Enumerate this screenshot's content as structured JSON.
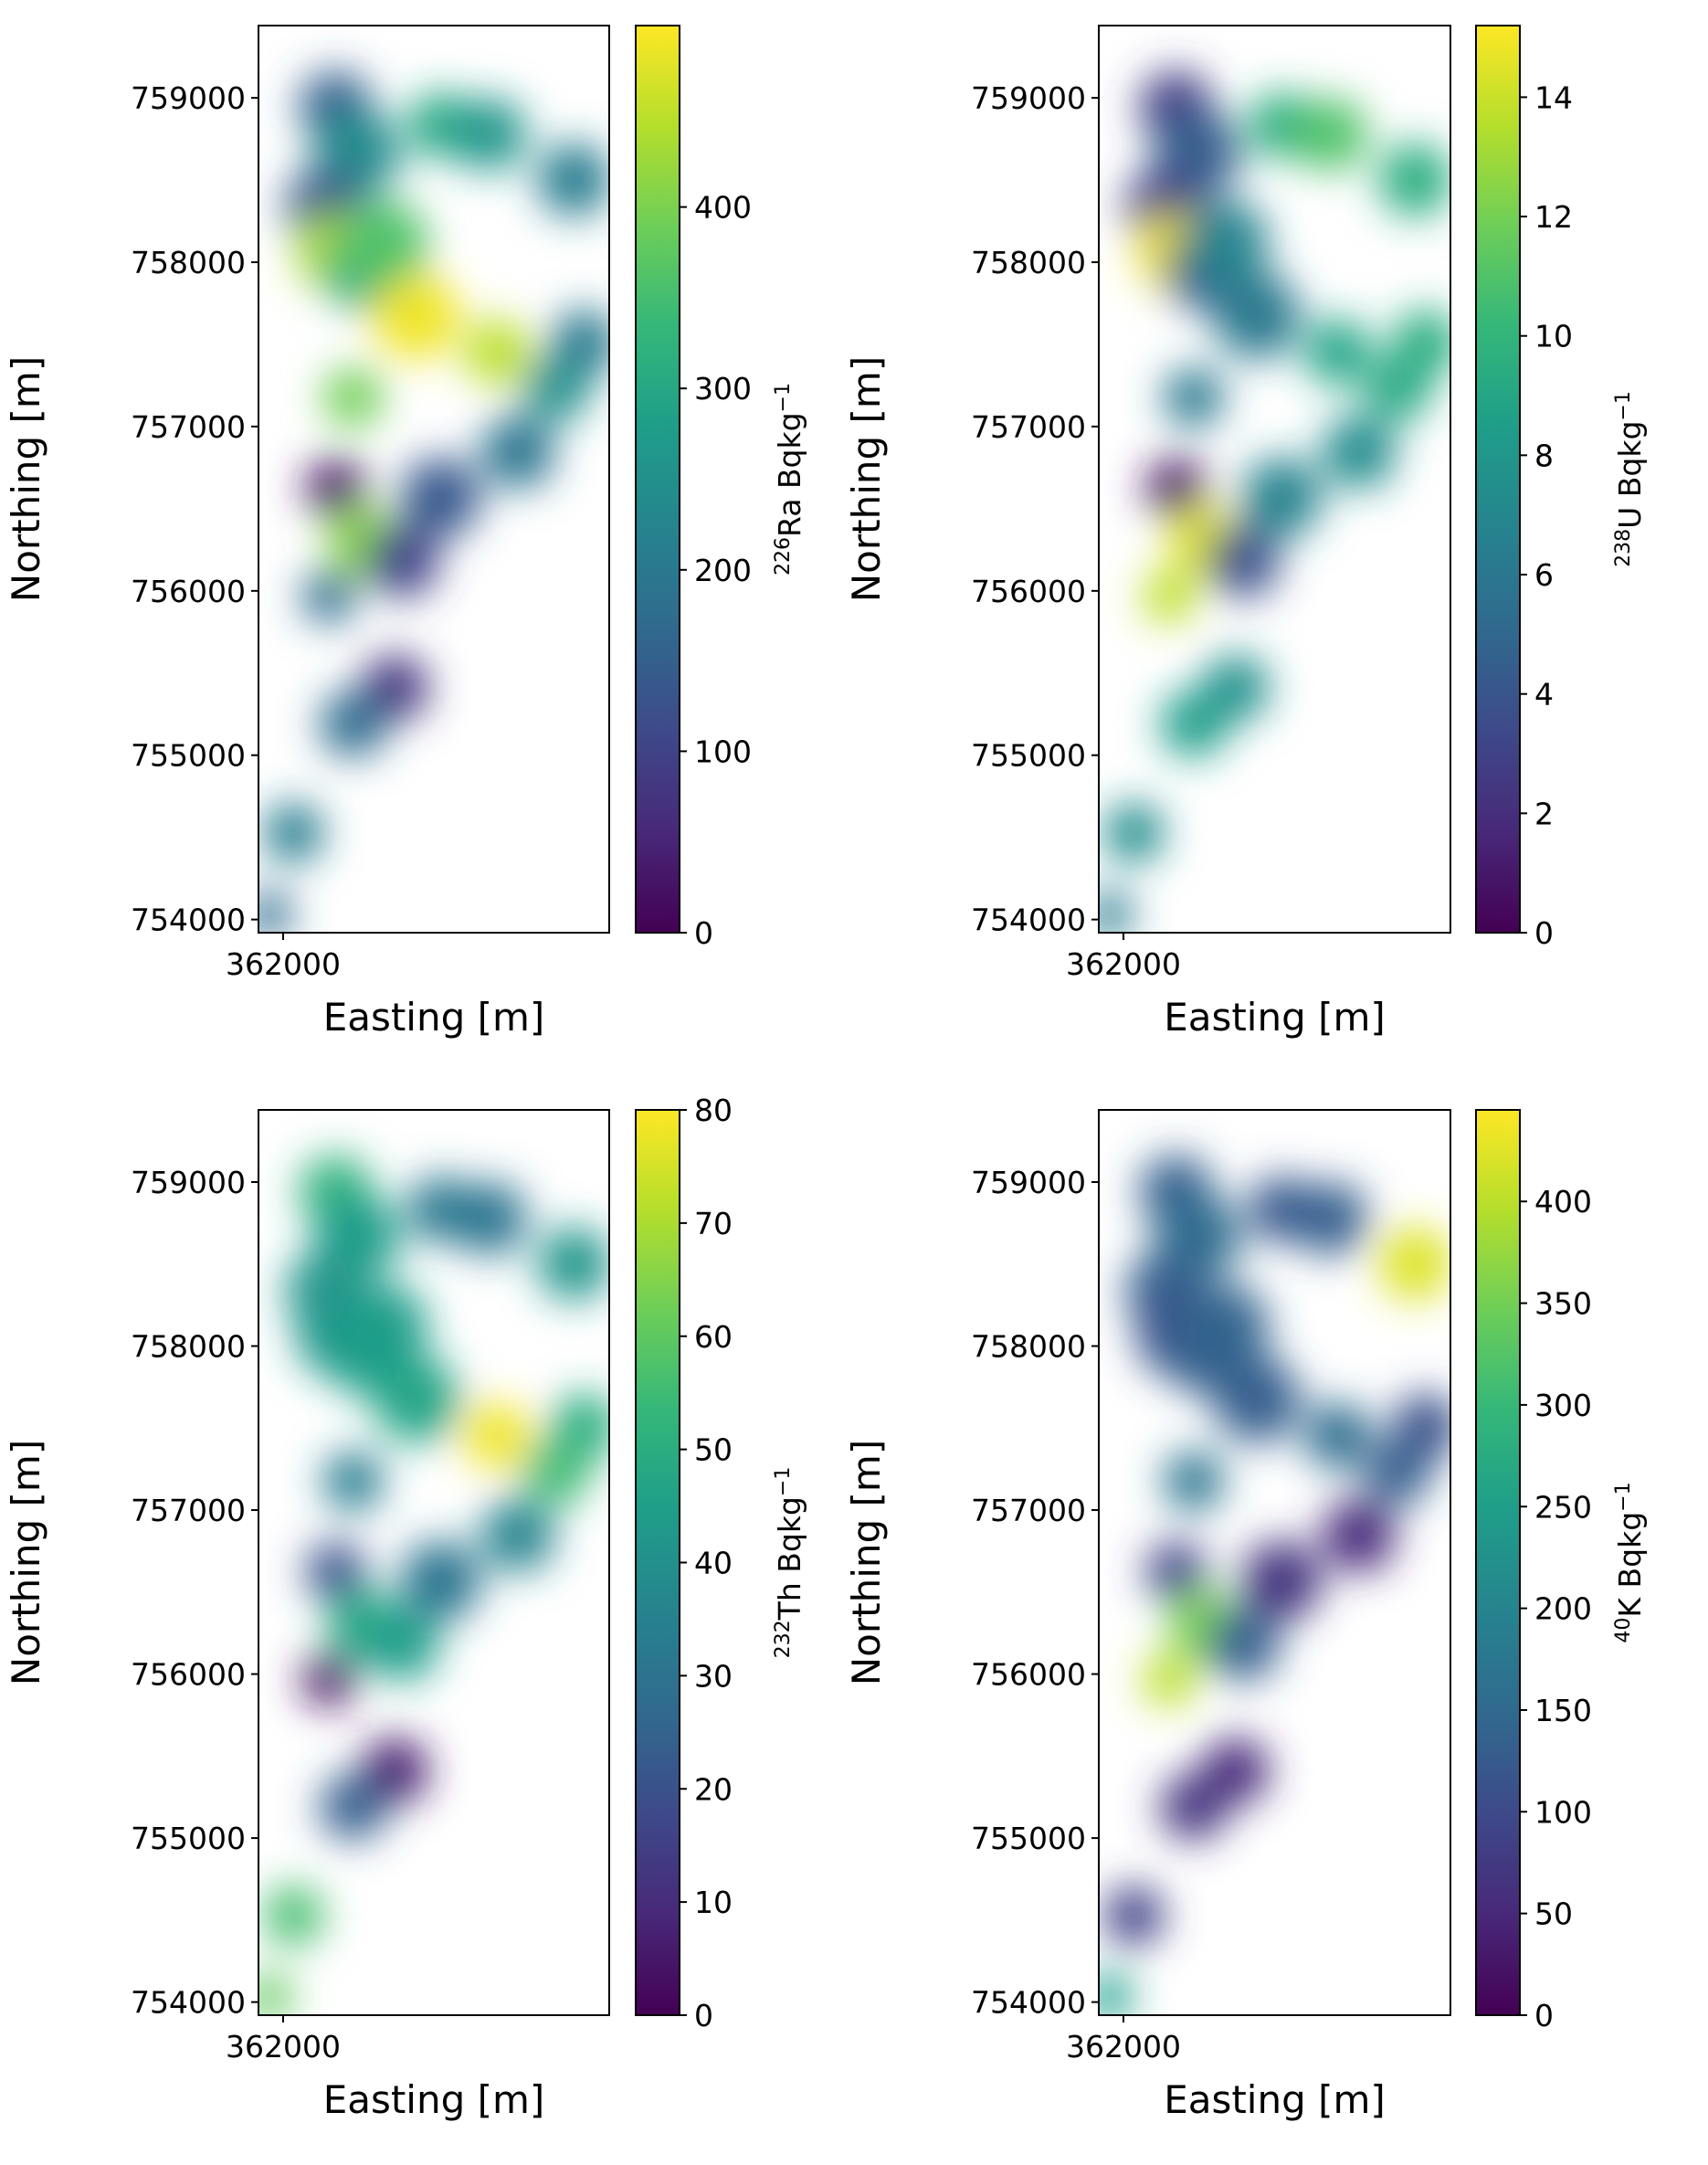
{
  "chart_data": [
    {
      "type": "heatmap",
      "xlabel": "Easting [m]",
      "ylabel": "Northing [m]",
      "x_ticks": [
        362000
      ],
      "y_ticks": [
        754000,
        755000,
        756000,
        757000,
        758000,
        759000
      ],
      "ylim": [
        753920,
        759440
      ],
      "colorbar": {
        "isotope_mass": "226",
        "element": "Ra",
        "unit": " Bqkg",
        "unit_exp": "−1",
        "range": [
          0,
          500
        ],
        "ticks": [
          0,
          100,
          200,
          300,
          400
        ],
        "colormap": "viridis"
      }
    },
    {
      "type": "heatmap",
      "xlabel": "Easting [m]",
      "ylabel": "Northing [m]",
      "x_ticks": [
        362000
      ],
      "y_ticks": [
        754000,
        755000,
        756000,
        757000,
        758000,
        759000
      ],
      "ylim": [
        753920,
        759440
      ],
      "colorbar": {
        "isotope_mass": "238",
        "element": "U",
        "unit": " Bqkg",
        "unit_exp": "−1",
        "range": [
          0,
          15.2
        ],
        "ticks": [
          0,
          2,
          4,
          6,
          8,
          10,
          12,
          14
        ],
        "colormap": "viridis"
      }
    },
    {
      "type": "heatmap",
      "xlabel": "Easting [m]",
      "ylabel": "Northing [m]",
      "x_ticks": [
        362000
      ],
      "y_ticks": [
        754000,
        755000,
        756000,
        757000,
        758000,
        759000
      ],
      "ylim": [
        753920,
        759440
      ],
      "colorbar": {
        "isotope_mass": "232",
        "element": "Th",
        "unit": " Bqkg",
        "unit_exp": "−1",
        "range": [
          0,
          80
        ],
        "ticks": [
          0,
          10,
          20,
          30,
          40,
          50,
          60,
          70,
          80
        ],
        "colormap": "viridis"
      }
    },
    {
      "type": "heatmap",
      "xlabel": "Easting [m]",
      "ylabel": "Northing [m]",
      "x_ticks": [
        362000
      ],
      "y_ticks": [
        754000,
        755000,
        756000,
        757000,
        758000,
        759000
      ],
      "ylim": [
        753920,
        759440
      ],
      "colorbar": {
        "isotope_mass": "40",
        "element": "K",
        "unit": " Bqkg",
        "unit_exp": "−1",
        "range": [
          0,
          445
        ],
        "ticks": [
          0,
          50,
          100,
          150,
          200,
          250,
          300,
          350,
          400
        ],
        "colormap": "viridis"
      }
    }
  ],
  "colors": {
    "viridis_stops": [
      "#440154",
      "#482878",
      "#3e4989",
      "#31688e",
      "#26828e",
      "#1f9e89",
      "#35b779",
      "#6ece58",
      "#b5de2b",
      "#fde725"
    ]
  }
}
